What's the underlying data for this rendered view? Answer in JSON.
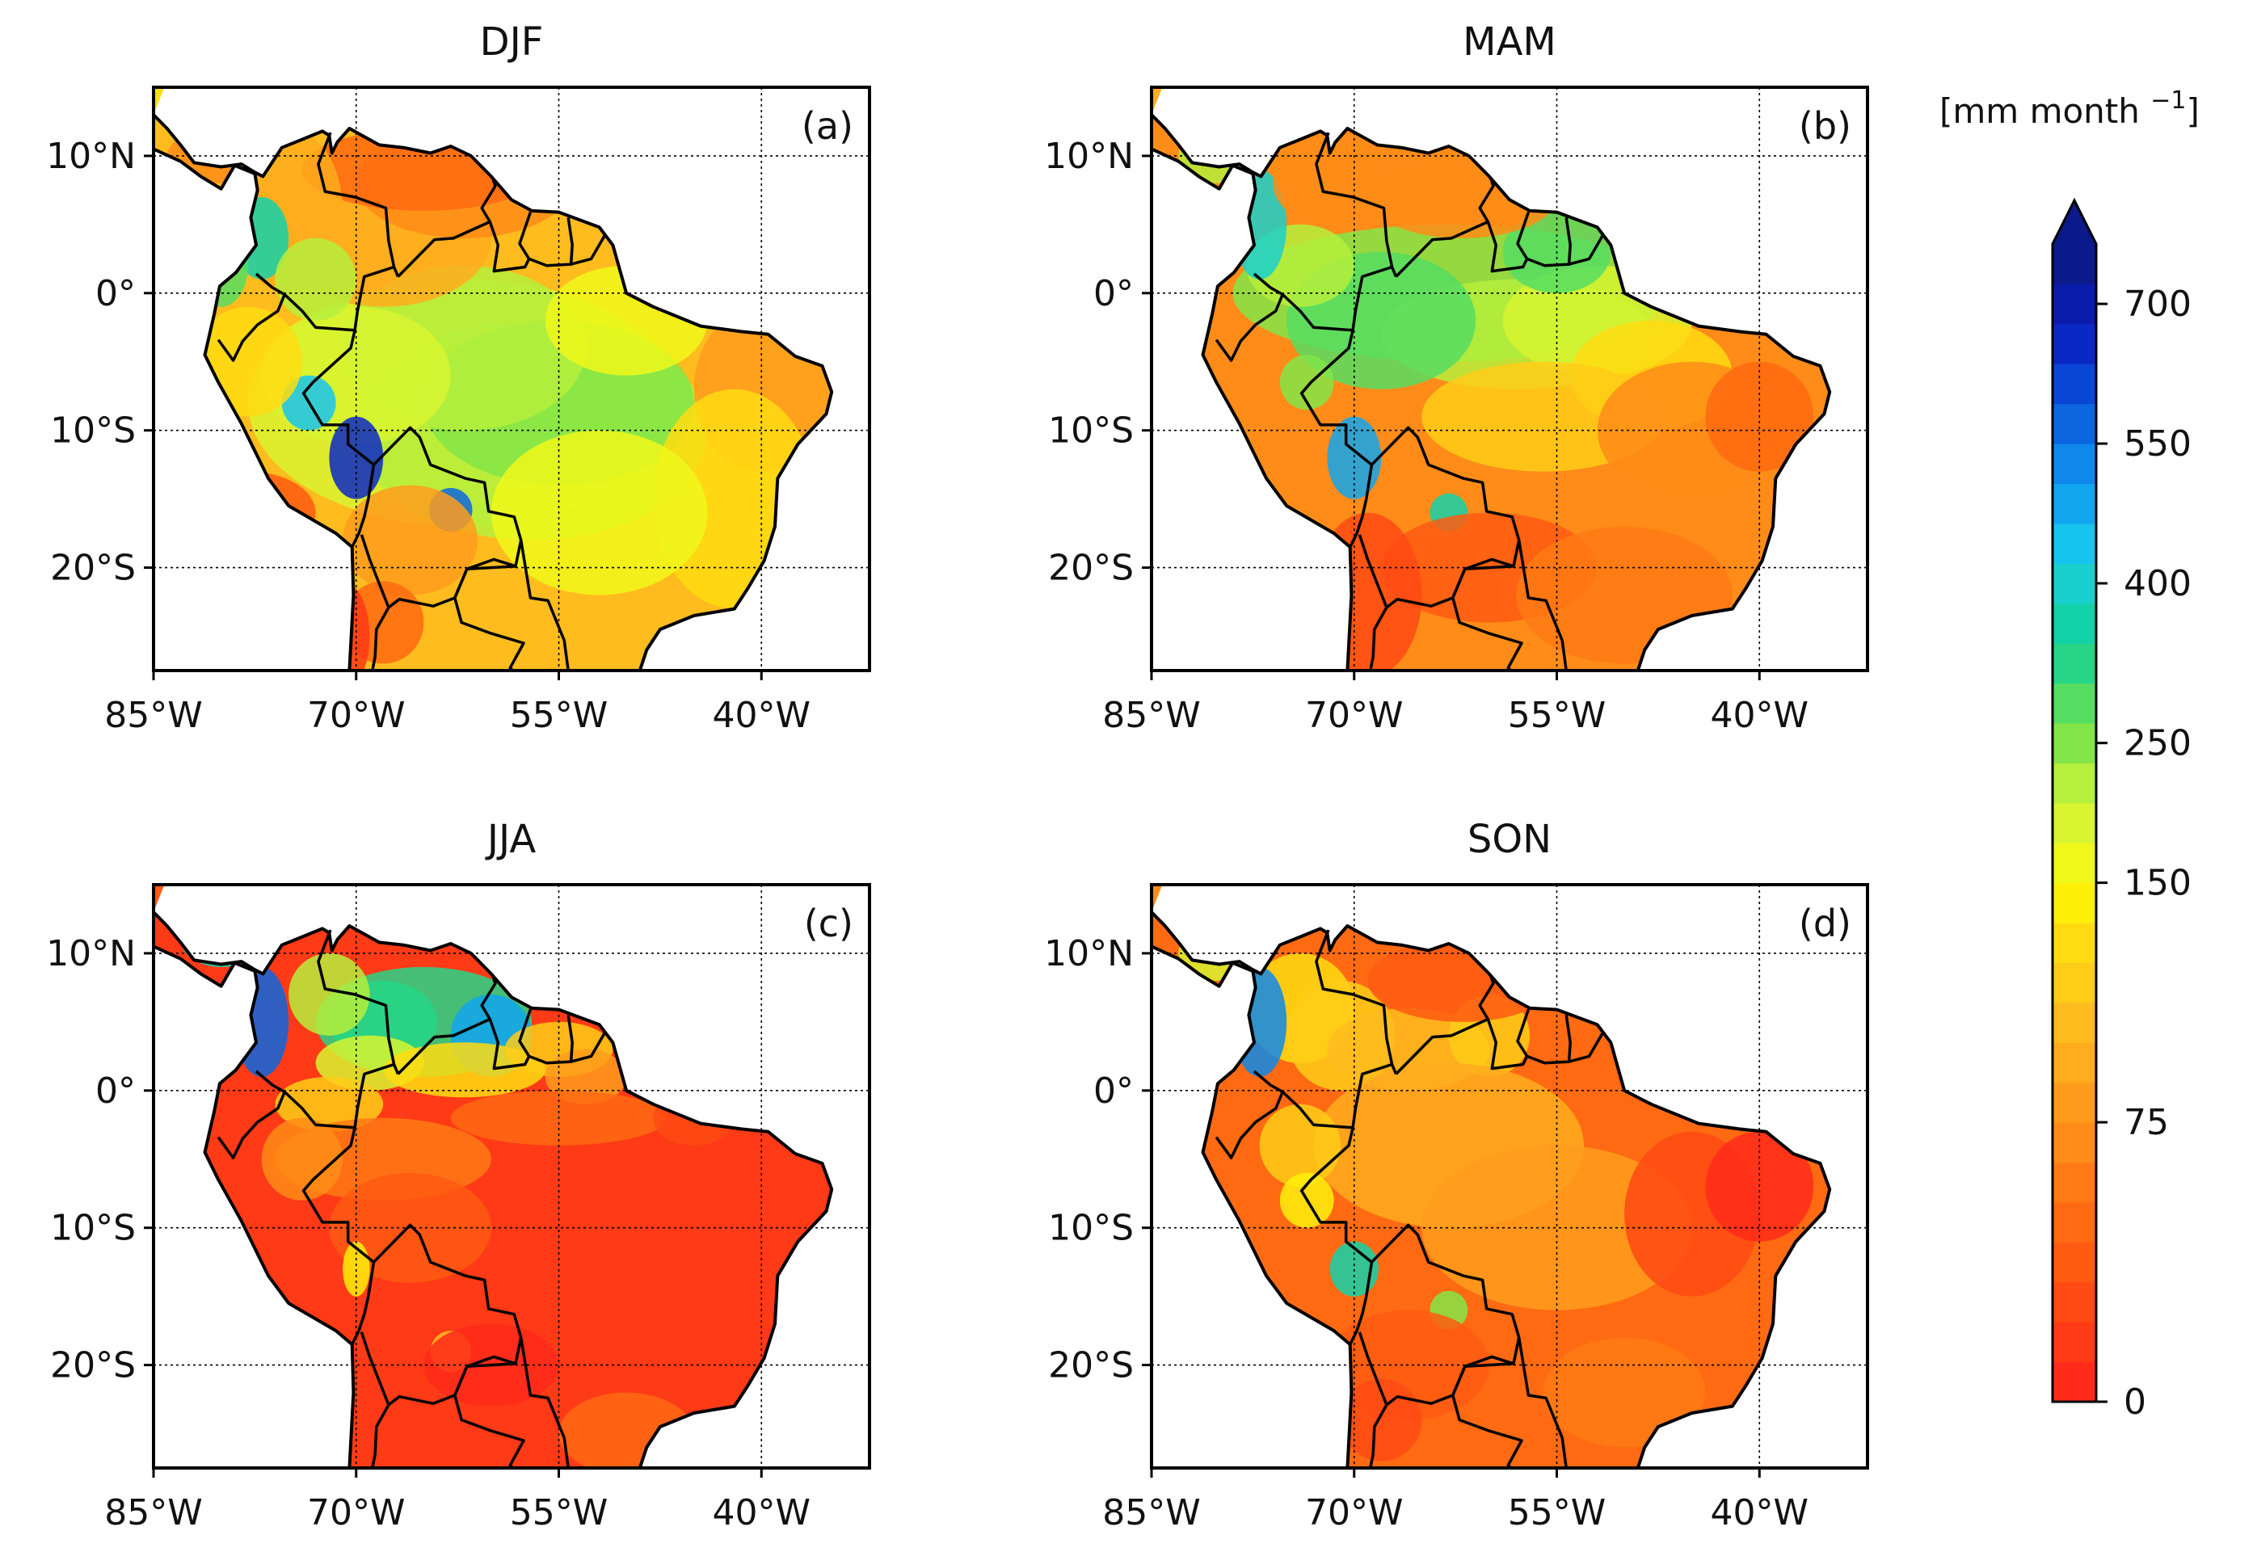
{
  "figure": {
    "panels": [
      {
        "id": "a",
        "season": "DJF",
        "label": "(a)",
        "scheme": "wet"
      },
      {
        "id": "b",
        "season": "MAM",
        "label": "(b)",
        "scheme": "trans_north"
      },
      {
        "id": "c",
        "season": "JJA",
        "label": "(c)",
        "scheme": "dry_south"
      },
      {
        "id": "d",
        "season": "SON",
        "label": "(d)",
        "scheme": "dry"
      }
    ],
    "x_ticks": [
      {
        "label": "85°W",
        "value": -85
      },
      {
        "label": "70°W",
        "value": -70
      },
      {
        "label": "55°W",
        "value": -55
      },
      {
        "label": "40°W",
        "value": -40
      }
    ],
    "y_ticks": [
      {
        "label": "10°N",
        "value": 10
      },
      {
        "label": "0°",
        "value": 0
      },
      {
        "label": "10°S",
        "value": -10
      },
      {
        "label": "20°S",
        "value": -20
      }
    ],
    "lon_range": [
      -85,
      -32
    ],
    "lat_range": [
      -27.5,
      15
    ]
  },
  "colorbar": {
    "title_main": "[mm month ",
    "title_sup": "−1",
    "title_end": "]",
    "extend": "max",
    "ticks": [
      {
        "label": "0",
        "value": 0
      },
      {
        "label": "75",
        "value": 75
      },
      {
        "label": "150",
        "value": 150
      },
      {
        "label": "250",
        "value": 250
      },
      {
        "label": "400",
        "value": 400
      },
      {
        "label": "550",
        "value": 550
      },
      {
        "label": "700",
        "value": 700
      }
    ],
    "colors": [
      "#ff2a1a",
      "#ff3a16",
      "#ff4a14",
      "#ff5a12",
      "#ff6a12",
      "#ff7a14",
      "#ff8c18",
      "#ff9c1c",
      "#ffac1e",
      "#ffbc1e",
      "#ffcc18",
      "#ffdc12",
      "#fff00a",
      "#f0f81a",
      "#d8f530",
      "#b6ef3c",
      "#84e548",
      "#56dd62",
      "#26d686",
      "#12d2aa",
      "#1ad0ce",
      "#16c4ee",
      "#12a6ee",
      "#0e88ea",
      "#0c66e0",
      "#0a46d6",
      "#0a28c6",
      "#0a1cac",
      "#0a1a8a"
    ]
  }
}
